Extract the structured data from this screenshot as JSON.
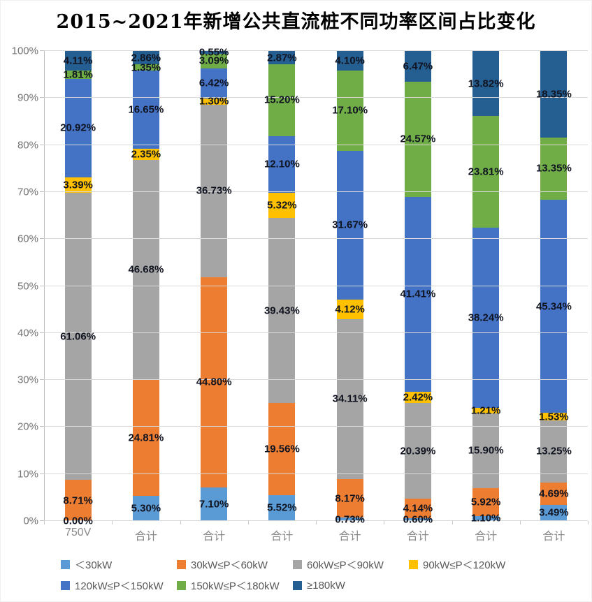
{
  "chart_data": {
    "type": "bar",
    "stacked": true,
    "units": "percent",
    "title": "2015~2021年新增公共直流桩不同功率区间占比变化",
    "categories": [
      "750V",
      "合计",
      "合计",
      "合计",
      "合计",
      "合计",
      "合计",
      "合计"
    ],
    "series": [
      {
        "name": "＜30kW",
        "color": "#5B9BD5",
        "values": [
          0.0,
          5.3,
          7.1,
          5.52,
          0.73,
          0.6,
          1.1,
          3.49
        ]
      },
      {
        "name": "30kW≤P＜60kW",
        "color": "#ED7D31",
        "values": [
          8.71,
          24.81,
          44.8,
          19.56,
          8.17,
          4.14,
          5.92,
          4.69
        ]
      },
      {
        "name": "60kW≤P＜90kW",
        "color": "#A5A5A5",
        "values": [
          61.06,
          46.68,
          36.73,
          39.43,
          34.11,
          20.39,
          15.9,
          13.25
        ]
      },
      {
        "name": "90kW≤P＜120kW",
        "color": "#FFC000",
        "values": [
          3.39,
          2.35,
          1.3,
          5.32,
          4.12,
          2.42,
          1.21,
          1.53
        ]
      },
      {
        "name": "120kW≤P＜150kW",
        "color": "#4472C4",
        "values": [
          20.92,
          16.65,
          6.42,
          12.1,
          31.67,
          41.41,
          38.24,
          45.34
        ]
      },
      {
        "name": "150kW≤P＜180kW",
        "color": "#70AD47",
        "values": [
          1.81,
          1.35,
          3.09,
          15.2,
          17.1,
          24.57,
          23.81,
          13.35
        ]
      },
      {
        "name": "≥180kW",
        "color": "#255E91",
        "values": [
          4.11,
          2.86,
          0.55,
          2.87,
          4.1,
          6.47,
          13.82,
          18.35
        ]
      }
    ],
    "yticks": [
      "0%",
      "10%",
      "20%",
      "30%",
      "40%",
      "50%",
      "60%",
      "70%",
      "80%",
      "90%",
      "100%"
    ],
    "ylim": [
      0,
      100
    ],
    "grid": true,
    "legend_position": "bottom",
    "label_format": "0.00%"
  },
  "style": {
    "grid_color": "#D9D9D9",
    "axis_color": "#BFBFBF",
    "axis_text_color": "#737373",
    "category_text_color": "#8A8A8A",
    "data_label_color": "#101420",
    "legend_text_color": "#595959",
    "background": "#FFFFFF"
  }
}
